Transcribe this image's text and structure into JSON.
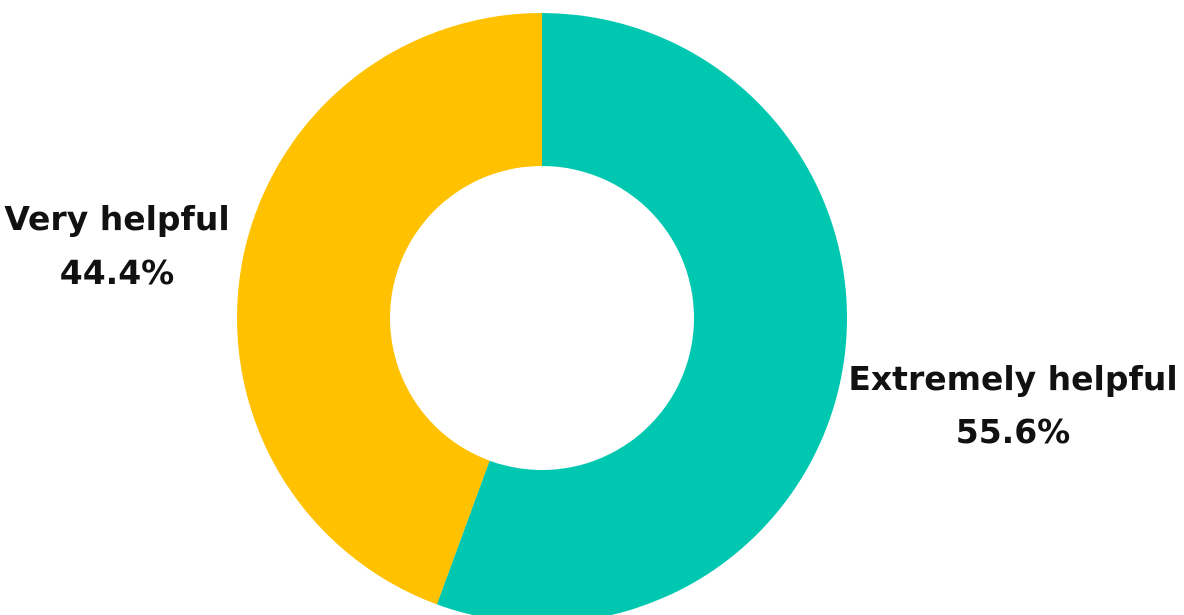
{
  "chart_data": {
    "type": "pie",
    "donut": true,
    "start_angle_deg": 0,
    "direction": "clockwise",
    "slices": [
      {
        "label": "Extremely helpful",
        "value": 55.6,
        "value_label": "55.6%",
        "color": "#00C7B0"
      },
      {
        "label": "Very helpful",
        "value": 44.4,
        "value_label": "44.4%",
        "color": "#FFC100"
      }
    ],
    "background": "#FFFFFF",
    "legend": "none"
  }
}
